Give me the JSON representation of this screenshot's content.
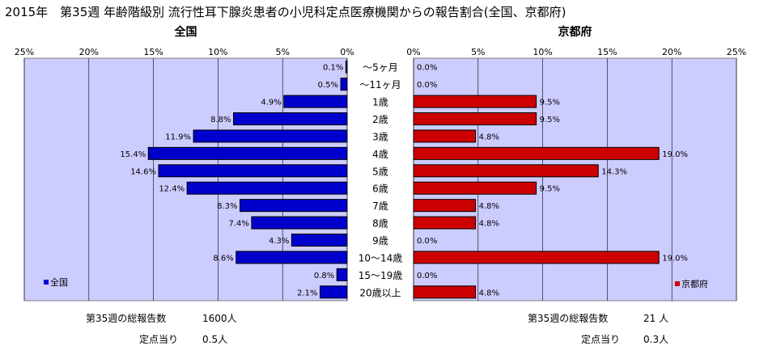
{
  "title": "2015年　第35週 年齢階級別 流行性耳下腺炎患者の小児科定点医療機関からの報告割合(全国、京都府)",
  "colors": {
    "plot_bg": "#ccccff",
    "left_bar": "#0000cc",
    "right_bar": "#cc0000",
    "bar_outline": "#000000",
    "grid": "#000000"
  },
  "chart_data": [
    {
      "type": "bar",
      "orientation": "horizontal",
      "direction": "reversed",
      "panel_title": "全国",
      "legend": "全国",
      "legend_position": "bottom-left",
      "grid": true,
      "xlim": [
        0,
        25
      ],
      "tick_labels": [
        "0%",
        "5%",
        "10%",
        "15%",
        "20%",
        "25%"
      ],
      "categories": [
        "～5ヶ月",
        "～11ヶ月",
        "1歳",
        "2歳",
        "3歳",
        "4歳",
        "5歳",
        "6歳",
        "7歳",
        "8歳",
        "9歳",
        "10～14歳",
        "15～19歳",
        "20歳以上"
      ],
      "values": [
        0.1,
        0.5,
        4.9,
        8.8,
        11.9,
        15.4,
        14.6,
        12.4,
        8.3,
        7.4,
        4.3,
        8.6,
        0.8,
        2.1
      ],
      "value_labels": [
        "0.1%",
        "0.5%",
        "4.9%",
        "8.8%",
        "11.9%",
        "15.4%",
        "14.6%",
        "12.4%",
        "8.3%",
        "7.4%",
        "4.3%",
        "8.6%",
        "0.8%",
        "2.1%"
      ]
    },
    {
      "type": "bar",
      "orientation": "horizontal",
      "direction": "normal",
      "panel_title": "京都府",
      "legend": "京都府",
      "legend_position": "bottom-right",
      "grid": true,
      "xlim": [
        0,
        25
      ],
      "tick_labels": [
        "0%",
        "5%",
        "10%",
        "15%",
        "20%",
        "25%"
      ],
      "categories": [
        "～5ヶ月",
        "～11ヶ月",
        "1歳",
        "2歳",
        "3歳",
        "4歳",
        "5歳",
        "6歳",
        "7歳",
        "8歳",
        "9歳",
        "10～14歳",
        "15～19歳",
        "20歳以上"
      ],
      "values": [
        0.0,
        0.0,
        9.5,
        9.5,
        4.8,
        19.0,
        14.3,
        9.5,
        4.8,
        4.8,
        0.0,
        19.0,
        0.0,
        4.8
      ],
      "value_labels": [
        "0.0%",
        "0.0%",
        "9.5%",
        "9.5%",
        "4.8%",
        "19.0%",
        "14.3%",
        "9.5%",
        "4.8%",
        "4.8%",
        "0.0%",
        "19.0%",
        "0.0%",
        "4.8%"
      ]
    }
  ],
  "footer": {
    "left": {
      "total_label": "第35週の総報告数",
      "total_value": "1600人",
      "per_label": "定点当り",
      "per_value": "0.5人"
    },
    "right": {
      "total_label": "第35週の総報告数",
      "total_value": "21 人",
      "per_label": "定点当り",
      "per_value": "0.3人"
    }
  }
}
